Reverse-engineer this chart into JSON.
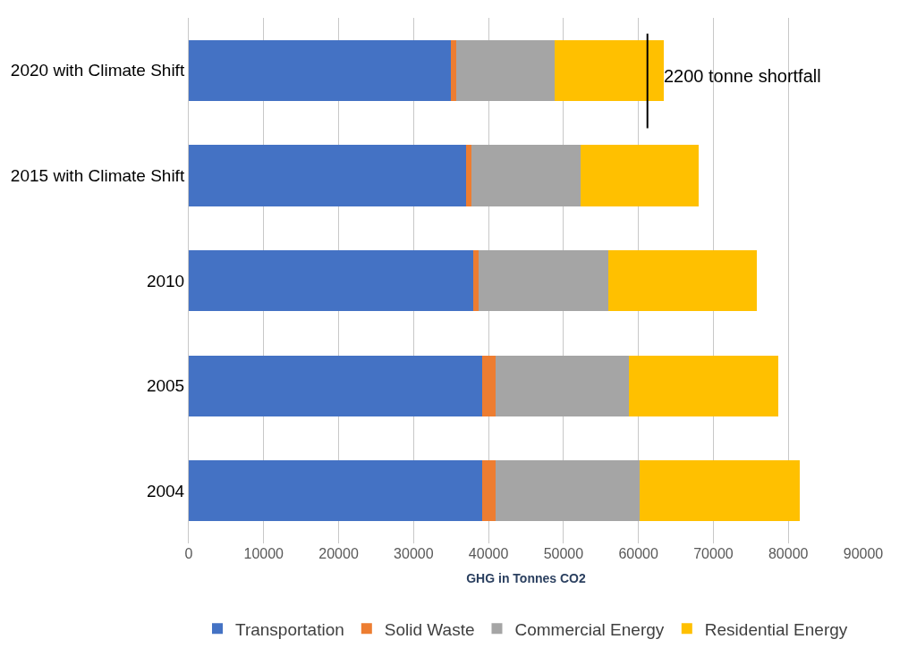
{
  "chart_data": {
    "type": "bar",
    "orientation": "horizontal",
    "stacked": true,
    "categories": [
      "2020 with Climate Shift",
      "2015 with Climate Shift",
      "2010",
      "2005",
      "2004"
    ],
    "series": [
      {
        "name": "Transportation",
        "color": "#4472c4",
        "values": [
          35000,
          37000,
          38000,
          39200,
          39200
        ]
      },
      {
        "name": "Solid Waste",
        "color": "#ed7d31",
        "values": [
          700,
          700,
          700,
          1700,
          1800
        ]
      },
      {
        "name": "Commercial Energy",
        "color": "#a5a5a5",
        "values": [
          13100,
          14600,
          17300,
          17800,
          19200
        ]
      },
      {
        "name": "Residential Energy",
        "color": "#ffc000",
        "values": [
          14600,
          15700,
          19800,
          20000,
          21300
        ]
      }
    ],
    "xlabel": "GHG in Tonnes CO2",
    "xlim": [
      0,
      90000
    ],
    "xticks": [
      0,
      10000,
      20000,
      30000,
      40000,
      50000,
      60000,
      70000,
      80000,
      90000
    ],
    "ref_lines": [
      {
        "axis": "x",
        "value": 61200,
        "label": "2200 tonne shortfall",
        "color": "#000000"
      }
    ],
    "grid": "x",
    "legend": "bottom"
  }
}
